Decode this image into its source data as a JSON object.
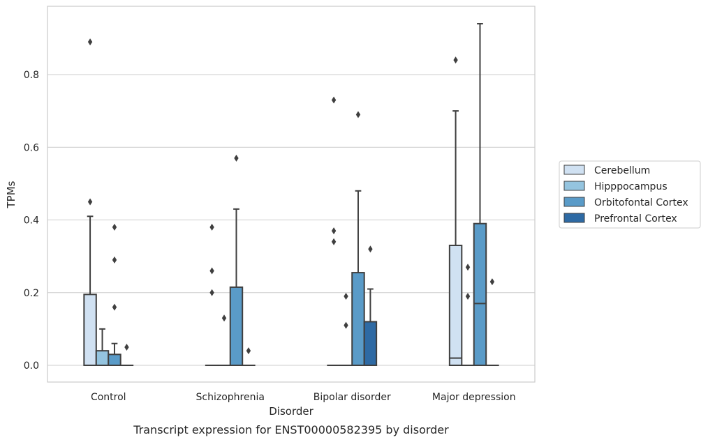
{
  "chart_data": {
    "type": "box",
    "xlabel": "Disorder",
    "ylabel": "TPMs",
    "caption": "Transcript expression for ENST00000582395 by disorder",
    "ylim": [
      -0.045,
      0.99
    ],
    "yticks": [
      0.0,
      0.2,
      0.4,
      0.6,
      0.8
    ],
    "ytick_labels": [
      "0.0",
      "0.2",
      "0.4",
      "0.6",
      "0.8"
    ],
    "grid": true,
    "legend_position": "right",
    "categories": [
      "Control",
      "Schizophrenia",
      "Bipolar disorder",
      "Major depression"
    ],
    "series": [
      {
        "name": "Cerebellum",
        "color": "#d0e1f2",
        "boxes": [
          {
            "whislo": 0.0,
            "q1": 0.0,
            "med": 0.0,
            "q3": 0.195,
            "whishi": 0.41,
            "fliers": [
              0.89,
              0.45
            ]
          },
          {
            "whislo": 0.0,
            "q1": 0.0,
            "med": 0.0,
            "q3": 0.0,
            "whishi": 0.0,
            "fliers": [
              0.38,
              0.26,
              0.2
            ]
          },
          {
            "whislo": 0.0,
            "q1": 0.0,
            "med": 0.0,
            "q3": 0.0,
            "whishi": 0.0,
            "fliers": [
              0.73,
              0.37,
              0.34
            ]
          },
          {
            "whislo": 0.0,
            "q1": 0.0,
            "med": 0.02,
            "q3": 0.33,
            "whishi": 0.7,
            "fliers": [
              0.84
            ]
          }
        ]
      },
      {
        "name": "Hipppocampus",
        "color": "#94c4df",
        "boxes": [
          {
            "whislo": 0.0,
            "q1": 0.0,
            "med": 0.0,
            "q3": 0.04,
            "whishi": 0.1,
            "fliers": []
          },
          {
            "whislo": 0.0,
            "q1": 0.0,
            "med": 0.0,
            "q3": 0.0,
            "whishi": 0.0,
            "fliers": [
              0.13
            ]
          },
          {
            "whislo": 0.0,
            "q1": 0.0,
            "med": 0.0,
            "q3": 0.0,
            "whishi": 0.0,
            "fliers": [
              0.19,
              0.11
            ]
          },
          {
            "whislo": 0.0,
            "q1": 0.0,
            "med": 0.0,
            "q3": 0.0,
            "whishi": 0.0,
            "fliers": [
              0.27,
              0.19
            ]
          }
        ]
      },
      {
        "name": "Orbitofontal Cortex",
        "color": "#5a9bc8",
        "boxes": [
          {
            "whislo": 0.0,
            "q1": 0.0,
            "med": 0.0,
            "q3": 0.03,
            "whishi": 0.06,
            "fliers": [
              0.38,
              0.29,
              0.16
            ]
          },
          {
            "whislo": 0.0,
            "q1": 0.0,
            "med": 0.0,
            "q3": 0.215,
            "whishi": 0.43,
            "fliers": [
              0.57
            ]
          },
          {
            "whislo": 0.0,
            "q1": 0.0,
            "med": 0.0,
            "q3": 0.255,
            "whishi": 0.48,
            "fliers": [
              0.69
            ]
          },
          {
            "whislo": 0.0,
            "q1": 0.0,
            "med": 0.17,
            "q3": 0.39,
            "whishi": 0.94,
            "fliers": []
          }
        ]
      },
      {
        "name": "Prefrontal Cortex",
        "color": "#2e6aa4",
        "boxes": [
          {
            "whislo": 0.0,
            "q1": 0.0,
            "med": 0.0,
            "q3": 0.0,
            "whishi": 0.0,
            "fliers": [
              0.05
            ]
          },
          {
            "whislo": 0.0,
            "q1": 0.0,
            "med": 0.0,
            "q3": 0.0,
            "whishi": 0.0,
            "fliers": [
              0.04
            ]
          },
          {
            "whislo": 0.0,
            "q1": 0.0,
            "med": 0.0,
            "q3": 0.12,
            "whishi": 0.21,
            "fliers": [
              0.32
            ]
          },
          {
            "whislo": 0.0,
            "q1": 0.0,
            "med": 0.0,
            "q3": 0.0,
            "whishi": 0.0,
            "fliers": [
              0.23
            ]
          }
        ]
      }
    ]
  }
}
